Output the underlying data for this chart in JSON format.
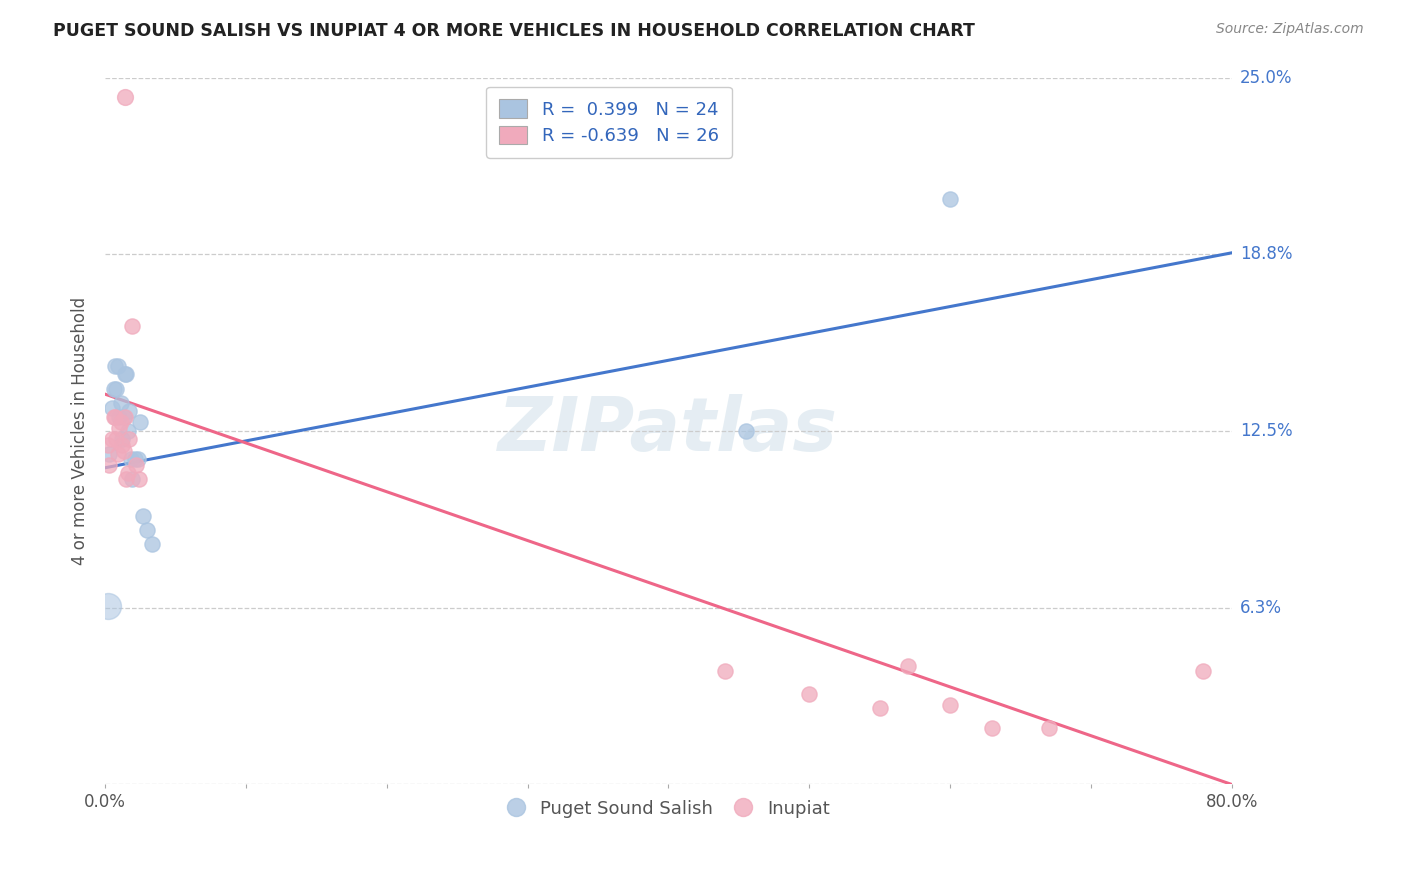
{
  "title": "PUGET SOUND SALISH VS INUPIAT 4 OR MORE VEHICLES IN HOUSEHOLD CORRELATION CHART",
  "source": "Source: ZipAtlas.com",
  "ylabel": "4 or more Vehicles in Household",
  "xlim": [
    0.0,
    0.8
  ],
  "ylim": [
    0.0,
    0.25
  ],
  "ytick_values": [
    0.0,
    0.0625,
    0.125,
    0.1875,
    0.25
  ],
  "ytick_labels": [
    "",
    "6.3%",
    "12.5%",
    "18.8%",
    "25.0%"
  ],
  "xtick_values": [
    0.0,
    0.1,
    0.2,
    0.3,
    0.4,
    0.5,
    0.6,
    0.7,
    0.8
  ],
  "xtick_labels": [
    "0.0%",
    "",
    "",
    "",
    "",
    "",
    "",
    "",
    "80.0%"
  ],
  "legend_blue_r": "0.399",
  "legend_blue_n": "24",
  "legend_pink_r": "-0.639",
  "legend_pink_n": "26",
  "blue_color": "#aac4e0",
  "pink_color": "#f0aabc",
  "blue_line_color": "#4477cc",
  "pink_line_color": "#ee6688",
  "watermark_text": "ZIPatlas",
  "blue_points_x": [
    0.003,
    0.005,
    0.006,
    0.007,
    0.008,
    0.009,
    0.01,
    0.011,
    0.012,
    0.013,
    0.014,
    0.015,
    0.016,
    0.017,
    0.018,
    0.019,
    0.021,
    0.023,
    0.025,
    0.027,
    0.03,
    0.033,
    0.455,
    0.6
  ],
  "blue_points_y": [
    0.117,
    0.133,
    0.14,
    0.148,
    0.14,
    0.148,
    0.13,
    0.135,
    0.122,
    0.13,
    0.145,
    0.145,
    0.125,
    0.132,
    0.115,
    0.108,
    0.115,
    0.115,
    0.128,
    0.095,
    0.09,
    0.085,
    0.125,
    0.207
  ],
  "blue_special_x": [
    0.002
  ],
  "blue_special_y": [
    0.063
  ],
  "blue_special_size": 350,
  "pink_points_x": [
    0.002,
    0.003,
    0.005,
    0.006,
    0.007,
    0.008,
    0.009,
    0.01,
    0.011,
    0.012,
    0.013,
    0.014,
    0.016,
    0.017,
    0.019,
    0.022,
    0.024,
    0.015,
    0.44,
    0.5,
    0.55,
    0.57,
    0.6,
    0.63,
    0.67,
    0.78
  ],
  "pink_points_y": [
    0.12,
    0.113,
    0.122,
    0.13,
    0.13,
    0.122,
    0.117,
    0.126,
    0.128,
    0.12,
    0.118,
    0.13,
    0.11,
    0.122,
    0.162,
    0.113,
    0.108,
    0.108,
    0.04,
    0.032,
    0.027,
    0.042,
    0.028,
    0.02,
    0.02,
    0.04
  ],
  "pink_special_x": [
    0.014
  ],
  "pink_special_y": [
    0.243
  ],
  "pink_special_size": 130,
  "blue_line_x": [
    0.0,
    0.8
  ],
  "blue_line_y": [
    0.112,
    0.188
  ],
  "pink_line_x": [
    0.0,
    0.8
  ],
  "pink_line_y": [
    0.138,
    0.0
  ],
  "dot_size": 120
}
